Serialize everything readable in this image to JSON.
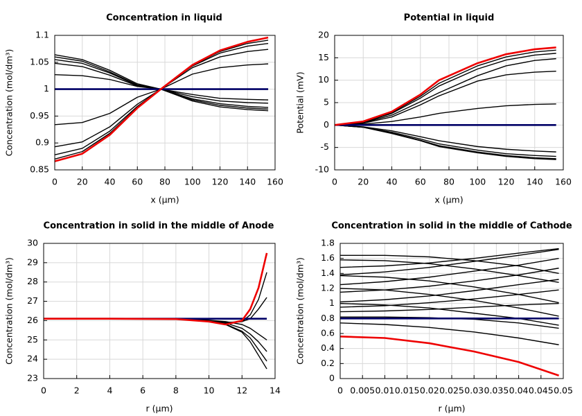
{
  "chart_data": [
    {
      "type": "line",
      "title": "Concentration in liquid",
      "xlabel": "x (µm)",
      "ylabel": "Concentration (mol/dm³)",
      "x": [
        0,
        20,
        40,
        60,
        77,
        100,
        120,
        140,
        155
      ],
      "xlim": [
        0,
        160
      ],
      "xticks": [
        0,
        20,
        40,
        60,
        80,
        100,
        120,
        140,
        160
      ],
      "ylim": [
        0.85,
        1.1
      ],
      "yticks": [
        0.85,
        0.9,
        0.95,
        1,
        1.05,
        1.1
      ],
      "grid": true,
      "series": [
        {
          "color": "#000000",
          "values": [
            1.064,
            1.055,
            1.035,
            1.01,
            1.0,
            0.978,
            0.967,
            0.962,
            0.96
          ]
        },
        {
          "color": "#000000",
          "values": [
            1.06,
            1.052,
            1.032,
            1.008,
            1.0,
            0.98,
            0.97,
            0.965,
            0.963
          ]
        },
        {
          "color": "#000000",
          "values": [
            1.055,
            1.048,
            1.03,
            1.007,
            1.0,
            0.982,
            0.973,
            0.968,
            0.966
          ]
        },
        {
          "color": "#000000",
          "values": [
            1.048,
            1.042,
            1.026,
            1.006,
            1.0,
            0.986,
            0.978,
            0.975,
            0.974
          ]
        },
        {
          "color": "#000000",
          "values": [
            1.027,
            1.025,
            1.018,
            1.005,
            1.0,
            0.99,
            0.983,
            0.981,
            0.98
          ]
        },
        {
          "color": "#000000",
          "values": [
            0.934,
            0.938,
            0.955,
            0.985,
            1.0,
            1.028,
            1.04,
            1.045,
            1.047
          ]
        },
        {
          "color": "#000000",
          "values": [
            0.893,
            0.902,
            0.93,
            0.972,
            1.0,
            1.04,
            1.06,
            1.07,
            1.074
          ]
        },
        {
          "color": "#000000",
          "values": [
            0.878,
            0.89,
            0.922,
            0.968,
            1.0,
            1.043,
            1.067,
            1.08,
            1.085
          ]
        },
        {
          "color": "#000000",
          "values": [
            0.87,
            0.884,
            0.918,
            0.966,
            1.0,
            1.044,
            1.07,
            1.085,
            1.091
          ]
        },
        {
          "color": "#000066",
          "values": [
            1,
            1,
            1,
            1,
            1,
            1,
            1,
            1,
            1
          ]
        },
        {
          "color": "#ee0000",
          "values": [
            0.866,
            0.88,
            0.915,
            0.965,
            1.0,
            1.045,
            1.072,
            1.088,
            1.096
          ]
        }
      ]
    },
    {
      "type": "line",
      "title": "Potential in liquid",
      "xlabel": "x (µm)",
      "ylabel": "Potential (mV)",
      "x": [
        0,
        20,
        40,
        60,
        73,
        100,
        120,
        140,
        155
      ],
      "xlim": [
        0,
        160
      ],
      "xticks": [
        0,
        20,
        40,
        60,
        80,
        100,
        120,
        140,
        160
      ],
      "ylim": [
        -10,
        20
      ],
      "yticks": [
        -10,
        -5,
        0,
        5,
        10,
        15,
        20
      ],
      "grid": true,
      "series": [
        {
          "color": "#000000",
          "values": [
            0,
            0.7,
            2.8,
            6.4,
            9.3,
            13.2,
            15.2,
            16.3,
            16.7
          ]
        },
        {
          "color": "#000000",
          "values": [
            0,
            0.6,
            2.6,
            6,
            8.7,
            12.5,
            14.5,
            15.6,
            16
          ]
        },
        {
          "color": "#000000",
          "values": [
            0,
            0.5,
            2.2,
            5.2,
            7.2,
            11,
            13.2,
            14.4,
            14.8
          ]
        },
        {
          "color": "#000000",
          "values": [
            0,
            0.4,
            1.8,
            4.5,
            6.5,
            9.8,
            11.2,
            11.8,
            12
          ]
        },
        {
          "color": "#000000",
          "values": [
            0,
            0.2,
            0.8,
            1.8,
            2.6,
            3.7,
            4.3,
            4.6,
            4.7
          ]
        },
        {
          "color": "#000000",
          "values": [
            0,
            -0.4,
            -1.3,
            -2.6,
            -3.5,
            -4.8,
            -5.4,
            -5.8,
            -6
          ]
        },
        {
          "color": "#000000",
          "values": [
            0,
            -0.5,
            -1.6,
            -3.1,
            -4.2,
            -5.6,
            -6.4,
            -6.8,
            -7
          ]
        },
        {
          "color": "#000000",
          "values": [
            0,
            -0.5,
            -1.8,
            -3.4,
            -4.6,
            -6,
            -6.8,
            -7.3,
            -7.5
          ]
        },
        {
          "color": "#000000",
          "values": [
            0,
            -0.5,
            -1.9,
            -3.5,
            -4.8,
            -6.2,
            -7,
            -7.5,
            -7.7
          ]
        },
        {
          "color": "#000066",
          "values": [
            0,
            0,
            0,
            0,
            0,
            0,
            0,
            0,
            0
          ]
        },
        {
          "color": "#ee0000",
          "values": [
            0,
            0.8,
            3,
            6.8,
            10,
            13.8,
            15.8,
            16.9,
            17.3
          ]
        }
      ]
    },
    {
      "type": "line",
      "title": "Concentration in solid in the middle of Anode",
      "xlabel": "r (µm)",
      "ylabel": "Concentration (mol/dm³)",
      "x": [
        0,
        4,
        8,
        10,
        11,
        12,
        12.5,
        13,
        13.5
      ],
      "xlim": [
        0,
        14
      ],
      "xticks": [
        0,
        2,
        4,
        6,
        8,
        10,
        12,
        14
      ],
      "ylim": [
        23,
        30
      ],
      "yticks": [
        23,
        24,
        25,
        26,
        27,
        28,
        29,
        30
      ],
      "grid": true,
      "series": [
        {
          "color": "#000000",
          "values": [
            26.1,
            26.1,
            26.08,
            25.97,
            25.85,
            25.95,
            26.3,
            27.1,
            28.5
          ]
        },
        {
          "color": "#000000",
          "values": [
            26.1,
            26.1,
            26.08,
            25.99,
            25.9,
            25.95,
            26.1,
            26.6,
            27.2
          ]
        },
        {
          "color": "#000000",
          "values": [
            26.1,
            26.1,
            26.08,
            26.02,
            25.95,
            25.8,
            25.6,
            25.3,
            25.0
          ]
        },
        {
          "color": "#000000",
          "values": [
            26.1,
            26.1,
            26.08,
            26.0,
            25.88,
            25.6,
            25.3,
            24.9,
            24.4
          ]
        },
        {
          "color": "#000000",
          "values": [
            26.1,
            26.1,
            26.07,
            25.97,
            25.82,
            25.45,
            25.1,
            24.5,
            23.9
          ]
        },
        {
          "color": "#000000",
          "values": [
            26.1,
            26.1,
            26.07,
            25.96,
            25.8,
            25.4,
            24.9,
            24.2,
            23.5
          ]
        },
        {
          "color": "#000066",
          "values": [
            26.1,
            26.1,
            26.1,
            26.1,
            26.1,
            26.1,
            26.1,
            26.1,
            26.1
          ]
        },
        {
          "color": "#ee0000",
          "values": [
            26.1,
            26.1,
            26.08,
            25.95,
            25.8,
            26.0,
            26.6,
            27.7,
            29.5
          ]
        }
      ]
    },
    {
      "type": "line",
      "title": "Concentration in solid in the middle of Cathode",
      "xlabel": "r (µm)",
      "ylabel": "Concentration (mol/dm³)",
      "x": [
        0,
        0.01,
        0.02,
        0.03,
        0.04,
        0.049
      ],
      "xlim": [
        0,
        0.05
      ],
      "xticks": [
        0,
        0.005,
        0.01,
        0.015,
        0.02,
        0.025,
        0.03,
        0.035,
        0.04,
        0.045,
        0.05
      ],
      "ylim": [
        0,
        1.8
      ],
      "yticks": [
        0,
        0.2,
        0.4,
        0.6,
        0.8,
        1,
        1.2,
        1.4,
        1.6,
        1.8
      ],
      "grid": true,
      "series": [
        {
          "color": "#000000",
          "values": [
            0.74,
            0.72,
            0.68,
            0.62,
            0.54,
            0.45
          ]
        },
        {
          "color": "#000000",
          "values": [
            0.82,
            0.82,
            0.81,
            0.79,
            0.74,
            0.67
          ]
        },
        {
          "color": "#000000",
          "values": [
            0.89,
            0.9,
            0.92,
            0.95,
            0.98,
            1.0
          ]
        },
        {
          "color": "#000000",
          "values": [
            0.95,
            0.97,
            1.01,
            1.06,
            1.12,
            1.18
          ]
        },
        {
          "color": "#000000",
          "values": [
            1.02,
            1.05,
            1.1,
            1.17,
            1.25,
            1.32
          ]
        },
        {
          "color": "#000000",
          "values": [
            1.15,
            1.18,
            1.23,
            1.3,
            1.38,
            1.47
          ]
        },
        {
          "color": "#000000",
          "values": [
            1.25,
            1.29,
            1.35,
            1.43,
            1.51,
            1.6
          ]
        },
        {
          "color": "#000000",
          "values": [
            1.38,
            1.42,
            1.48,
            1.56,
            1.64,
            1.72
          ]
        },
        {
          "color": "#000000",
          "values": [
            1.48,
            1.5,
            1.54,
            1.6,
            1.67,
            1.73
          ]
        },
        {
          "color": "#000000",
          "values": [
            1.64,
            1.64,
            1.62,
            1.57,
            1.5,
            1.4
          ]
        },
        {
          "color": "#000000",
          "values": [
            1.58,
            1.57,
            1.53,
            1.46,
            1.37,
            1.28
          ]
        },
        {
          "color": "#000000",
          "values": [
            1.37,
            1.35,
            1.3,
            1.22,
            1.12,
            1.01
          ]
        },
        {
          "color": "#000000",
          "values": [
            1.2,
            1.18,
            1.12,
            1.04,
            0.94,
            0.83
          ]
        },
        {
          "color": "#000000",
          "values": [
            1.0,
            0.98,
            0.94,
            0.87,
            0.8,
            0.71
          ]
        },
        {
          "color": "#000066",
          "values": [
            0.8,
            0.8,
            0.8,
            0.8,
            0.8,
            0.8
          ]
        },
        {
          "color": "#ee0000",
          "values": [
            0.56,
            0.54,
            0.47,
            0.36,
            0.22,
            0.04
          ]
        }
      ]
    }
  ]
}
